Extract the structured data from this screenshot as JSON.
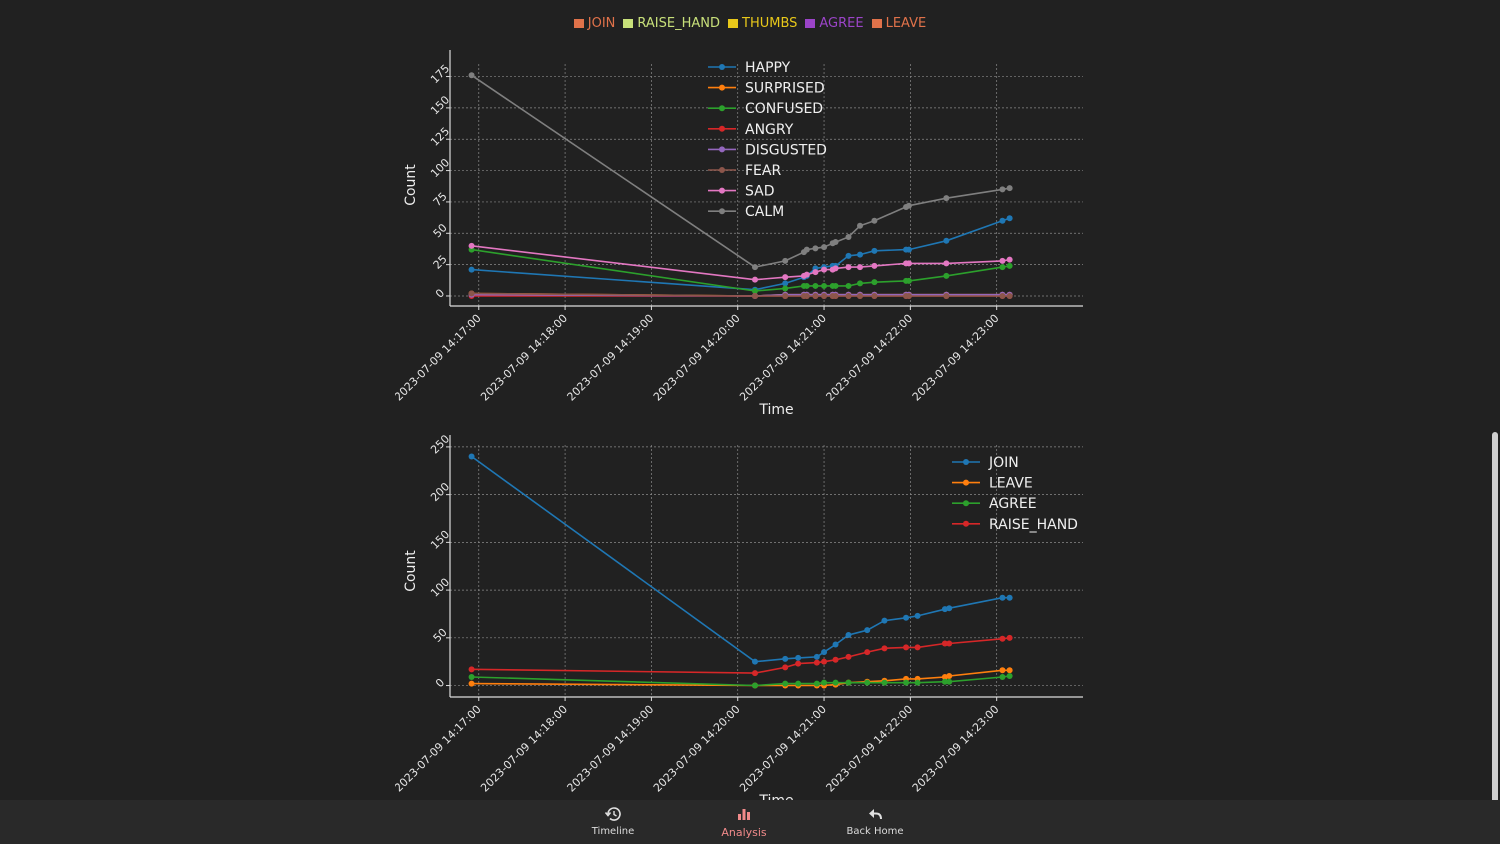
{
  "top_legend": [
    {
      "label": "JOIN",
      "color": "#e0724a"
    },
    {
      "label": "RAISE_HAND",
      "color": "#c8e07a"
    },
    {
      "label": "THUMBS",
      "color": "#e8c81a"
    },
    {
      "label": "AGREE",
      "color": "#9b44c8"
    },
    {
      "label": "LEAVE",
      "color": "#e0724a"
    }
  ],
  "bottom_nav": {
    "timeline": {
      "label": "Timeline",
      "icon": "history-icon"
    },
    "analysis": {
      "label": "Analysis",
      "icon": "bar-chart-icon"
    },
    "back_home": {
      "label": "Back Home",
      "icon": "reply-arrow-icon"
    }
  },
  "chart_data": [
    {
      "type": "line",
      "title": "",
      "xlabel": "Time",
      "ylabel": "Count",
      "xlim": [
        "2023-07-09 14:16:40",
        "2023-07-09 14:24:00"
      ],
      "ylim": [
        -8,
        185
      ],
      "yticks": [
        0,
        25,
        50,
        75,
        100,
        125,
        150,
        175
      ],
      "xticks": [
        "2023-07-09 14:17:00",
        "2023-07-09 14:18:00",
        "2023-07-09 14:19:00",
        "2023-07-09 14:20:00",
        "2023-07-09 14:21:00",
        "2023-07-09 14:22:00",
        "2023-07-09 14:23:00"
      ],
      "grid": true,
      "legend_position": "top-center",
      "x": [
        "14:16:55",
        "14:20:12",
        "14:20:33",
        "14:20:46",
        "14:20:48",
        "14:20:54",
        "14:21:00",
        "14:21:06",
        "14:21:08",
        "14:21:17",
        "14:21:25",
        "14:21:35",
        "14:21:57",
        "14:21:59",
        "14:22:25",
        "14:23:04",
        "14:23:09"
      ],
      "series": [
        {
          "name": "HAPPY",
          "color": "#1f77b4",
          "values": [
            21,
            5,
            10,
            15,
            16,
            22,
            23,
            24,
            24,
            32,
            33,
            36,
            37,
            37,
            44,
            60,
            62
          ]
        },
        {
          "name": "SURPRISED",
          "color": "#ff7f0e",
          "values": [
            2,
            0,
            1,
            1,
            1,
            1,
            1,
            1,
            1,
            1,
            1,
            1,
            1,
            1,
            1,
            1,
            1
          ]
        },
        {
          "name": "CONFUSED",
          "color": "#2ca02c",
          "values": [
            37,
            4,
            6,
            8,
            8,
            8,
            8,
            8,
            8,
            8,
            10,
            11,
            12,
            12,
            16,
            23,
            24
          ]
        },
        {
          "name": "ANGRY",
          "color": "#d62728",
          "values": [
            0,
            0,
            0,
            0,
            0,
            0,
            0,
            0,
            0,
            0,
            0,
            0,
            0,
            0,
            0,
            0,
            0
          ]
        },
        {
          "name": "DISGUSTED",
          "color": "#9467bd",
          "values": [
            1,
            0,
            1,
            1,
            1,
            1,
            1,
            1,
            1,
            1,
            1,
            1,
            1,
            1,
            1,
            1,
            1
          ]
        },
        {
          "name": "FEAR",
          "color": "#8c564b",
          "values": [
            2,
            0,
            0,
            0,
            0,
            0,
            0,
            0,
            0,
            0,
            0,
            0,
            0,
            0,
            0,
            0,
            0
          ]
        },
        {
          "name": "SAD",
          "color": "#e377c2",
          "values": [
            40,
            13,
            15,
            16,
            17,
            19,
            21,
            21,
            22,
            23,
            23,
            24,
            26,
            26,
            26,
            28,
            29
          ]
        },
        {
          "name": "CALM",
          "color": "#7f7f7f",
          "values": [
            176,
            23,
            28,
            35,
            37,
            38,
            39,
            42,
            43,
            47,
            56,
            60,
            71,
            72,
            78,
            85,
            86
          ]
        }
      ]
    },
    {
      "type": "line",
      "title": "",
      "xlabel": "Time",
      "ylabel": "Count",
      "xlim": [
        "2023-07-09 14:16:40",
        "2023-07-09 14:24:00"
      ],
      "ylim": [
        -12,
        252
      ],
      "yticks": [
        0,
        50,
        100,
        150,
        200,
        250
      ],
      "xticks": [
        "2023-07-09 14:17:00",
        "2023-07-09 14:18:00",
        "2023-07-09 14:19:00",
        "2023-07-09 14:20:00",
        "2023-07-09 14:21:00",
        "2023-07-09 14:22:00",
        "2023-07-09 14:23:00"
      ],
      "grid": true,
      "legend_position": "upper-right",
      "x": [
        "14:16:55",
        "14:20:12",
        "14:20:33",
        "14:20:42",
        "14:20:55",
        "14:21:00",
        "14:21:08",
        "14:21:17",
        "14:21:30",
        "14:21:42",
        "14:21:57",
        "14:22:05",
        "14:22:24",
        "14:22:27",
        "14:23:04",
        "14:23:09"
      ],
      "series": [
        {
          "name": "JOIN",
          "color": "#1f77b4",
          "values": [
            240,
            25,
            28,
            29,
            30,
            35,
            43,
            53,
            58,
            68,
            71,
            73,
            80,
            81,
            92,
            92
          ]
        },
        {
          "name": "LEAVE",
          "color": "#ff7f0e",
          "values": [
            2,
            0,
            0,
            0,
            0,
            0,
            1,
            3,
            4,
            5,
            7,
            7,
            9,
            10,
            16,
            16
          ]
        },
        {
          "name": "AGREE",
          "color": "#2ca02c",
          "values": [
            9,
            0,
            2,
            2,
            2,
            3,
            3,
            3,
            3,
            3,
            3,
            3,
            4,
            4,
            9,
            10
          ]
        },
        {
          "name": "RAISE_HAND",
          "color": "#d62728",
          "values": [
            17,
            13,
            19,
            23,
            24,
            25,
            27,
            30,
            35,
            39,
            40,
            40,
            44,
            44,
            49,
            50
          ]
        }
      ]
    }
  ]
}
